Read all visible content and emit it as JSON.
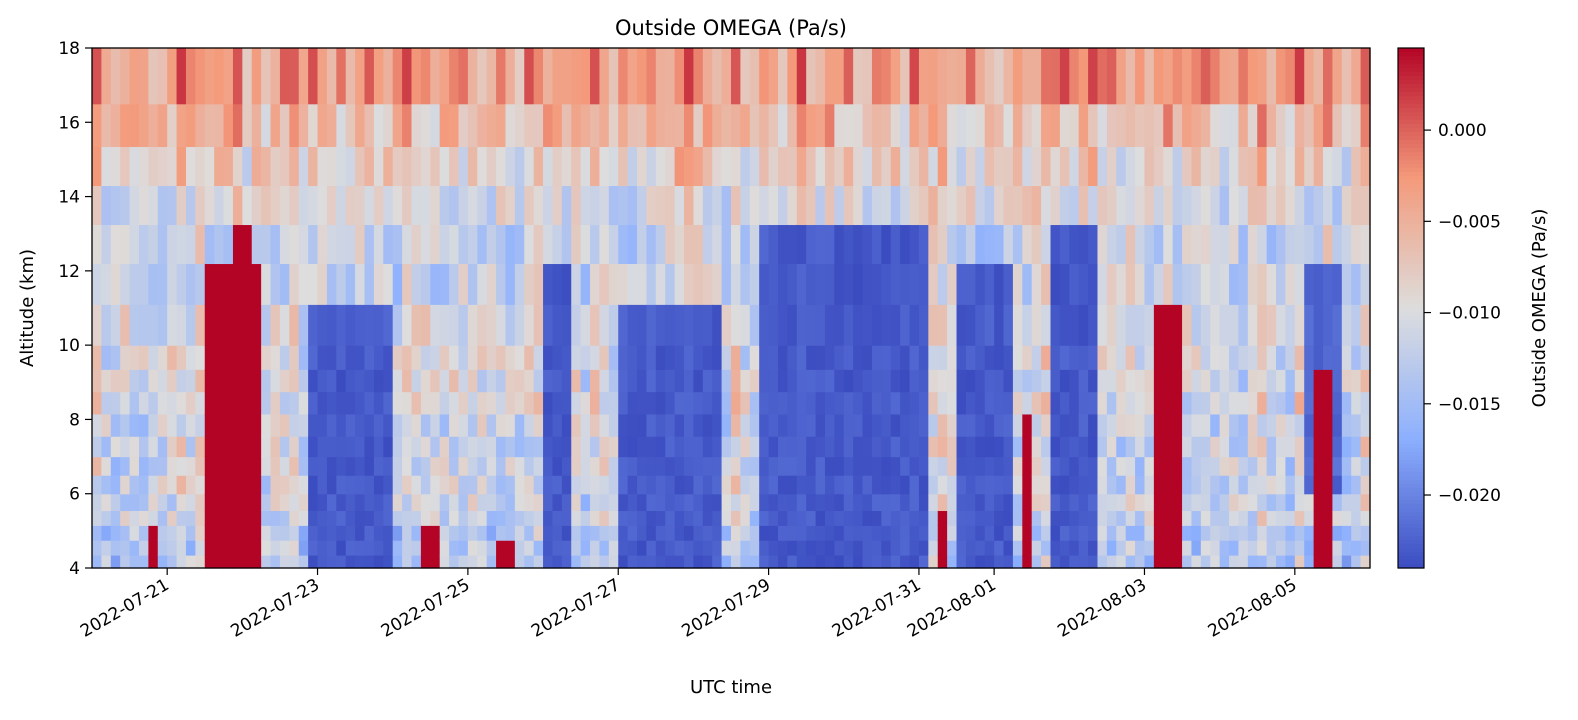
{
  "chart_data": {
    "type": "heatmap",
    "title": "Outside OMEGA (Pa/s)",
    "xlabel": "UTC time",
    "ylabel": "Altitude (km)",
    "colorbar_label": "Outside OMEGA (Pa/s)",
    "colormap": "coolwarm",
    "x_range": [
      "2022-07-20",
      "2022-08-06"
    ],
    "ylim": [
      4,
      18
    ],
    "vlim": [
      -0.024,
      0.0045
    ],
    "x_ticks": [
      "2022-07-21",
      "2022-07-23",
      "2022-07-25",
      "2022-07-27",
      "2022-07-29",
      "2022-07-31",
      "2022-08-01",
      "2022-08-03",
      "2022-08-05"
    ],
    "y_ticks": [
      4,
      6,
      8,
      10,
      12,
      14,
      16,
      18
    ],
    "colorbar_ticks": [
      0.0,
      -0.005,
      -0.01,
      -0.015,
      -0.02
    ],
    "colorbar_tick_labels": [
      "0.000",
      "−0.005",
      "−0.010",
      "−0.015",
      "−0.020"
    ],
    "y_tick_labels": [
      "4",
      "6",
      "8",
      "10",
      "12",
      "14",
      "16",
      "18"
    ],
    "altitude_levels_km": [
      4.0,
      4.35,
      4.75,
      5.15,
      5.55,
      6.0,
      6.5,
      7.0,
      7.55,
      8.15,
      8.75,
      9.35,
      10.0,
      11.1,
      12.2,
      13.25,
      14.3,
      15.35,
      16.5,
      18.0
    ],
    "sample_interval_hours": 3,
    "start_time": "2022-07-20T00:00",
    "background_omega_pa_s": [
      {
        "top_km": 5,
        "value": -0.013
      },
      {
        "top_km": 8,
        "value": -0.011
      },
      {
        "top_km": 11,
        "value": -0.01
      },
      {
        "top_km": 13,
        "value": -0.011
      },
      {
        "top_km": 14.3,
        "value": -0.01
      },
      {
        "top_km": 15.3,
        "value": -0.008
      },
      {
        "top_km": 16.5,
        "value": -0.006
      },
      {
        "top_km": 18,
        "value": -0.003
      }
    ],
    "features": [
      {
        "kind": "ascent",
        "start": "2022-07-22T21:00",
        "end": "2022-07-24T00:00",
        "bottom_km": 4,
        "top_km": 11.1,
        "value": -0.024
      },
      {
        "kind": "ascent",
        "start": "2022-07-26T00:00",
        "end": "2022-07-26T09:00",
        "bottom_km": 4,
        "top_km": 12.2,
        "value": -0.024
      },
      {
        "kind": "ascent",
        "start": "2022-07-27T00:00",
        "end": "2022-07-28T09:00",
        "bottom_km": 4,
        "top_km": 11.1,
        "value": -0.024
      },
      {
        "kind": "ascent",
        "start": "2022-07-28T21:00",
        "end": "2022-07-29T18:00",
        "bottom_km": 4,
        "top_km": 13.25,
        "value": -0.024
      },
      {
        "kind": "ascent",
        "start": "2022-07-29T18:00",
        "end": "2022-07-30T12:00",
        "bottom_km": 4,
        "top_km": 13.25,
        "value": -0.024
      },
      {
        "kind": "ascent",
        "start": "2022-07-30T12:00",
        "end": "2022-07-31T03:00",
        "bottom_km": 4,
        "top_km": 13.25,
        "value": -0.024
      },
      {
        "kind": "ascent",
        "start": "2022-07-31T12:00",
        "end": "2022-08-01T06:00",
        "bottom_km": 4,
        "top_km": 12.2,
        "value": -0.024
      },
      {
        "kind": "ascent",
        "start": "2022-08-01T18:00",
        "end": "2022-08-02T09:00",
        "bottom_km": 4,
        "top_km": 13.25,
        "value": -0.024
      },
      {
        "kind": "ascent",
        "start": "2022-08-05T03:00",
        "end": "2022-08-05T15:00",
        "bottom_km": 6,
        "top_km": 12.2,
        "value": -0.023
      },
      {
        "kind": "descent",
        "start": "2022-07-21T12:00",
        "end": "2022-07-22T06:00",
        "bottom_km": 4,
        "top_km": 12.2,
        "value": 0.0045
      },
      {
        "kind": "descent",
        "start": "2022-07-21T21:00",
        "end": "2022-07-22T03:00",
        "bottom_km": 12.2,
        "top_km": 13.25,
        "value": 0.0045
      },
      {
        "kind": "descent",
        "start": "2022-07-31T06:00",
        "end": "2022-07-31T09:00",
        "bottom_km": 4,
        "top_km": 5.55,
        "value": 0.0045
      },
      {
        "kind": "descent",
        "start": "2022-08-01T09:00",
        "end": "2022-08-01T12:00",
        "bottom_km": 4,
        "top_km": 8.15,
        "value": 0.0045
      },
      {
        "kind": "descent",
        "start": "2022-08-03T03:00",
        "end": "2022-08-03T12:00",
        "bottom_km": 4,
        "top_km": 11.1,
        "value": 0.0045
      },
      {
        "kind": "descent",
        "start": "2022-08-05T06:00",
        "end": "2022-08-05T12:00",
        "bottom_km": 4,
        "top_km": 9.35,
        "value": 0.0045
      },
      {
        "kind": "descent",
        "start": "2022-07-20T18:00",
        "end": "2022-07-20T21:00",
        "bottom_km": 4,
        "top_km": 5.15,
        "value": 0.0045
      },
      {
        "kind": "descent",
        "start": "2022-07-24T09:00",
        "end": "2022-07-24T15:00",
        "bottom_km": 4,
        "top_km": 5.15,
        "value": 0.0045
      },
      {
        "kind": "descent",
        "start": "2022-07-25T09:00",
        "end": "2022-07-25T15:00",
        "bottom_km": 4,
        "top_km": 4.75,
        "value": 0.0045
      }
    ]
  }
}
